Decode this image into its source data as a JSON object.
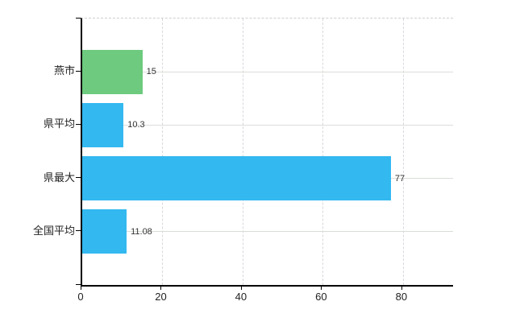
{
  "chart_data": {
    "type": "bar",
    "orientation": "horizontal",
    "categories": [
      "燕市",
      "県平均",
      "県最大",
      "全国平均"
    ],
    "values": [
      15,
      10.3,
      77,
      11.08
    ],
    "value_labels": [
      "15",
      "10.3",
      "77",
      "11.08"
    ],
    "bar_colors": [
      "#6dca7e",
      "#33b8f0",
      "#33b8f0",
      "#33b8f0"
    ],
    "x_ticks": [
      0,
      20,
      40,
      60,
      80
    ],
    "x_tick_labels": [
      "0",
      "20",
      "40",
      "60",
      "80"
    ],
    "xlim": [
      0,
      92.5
    ],
    "grid": true,
    "gridline_horizontal_color": "#d9ded7",
    "gridline_vertical_color": "#d8d8e0",
    "axis_color": "#000000",
    "background_color": "#ffffff",
    "legend_position": "none"
  }
}
